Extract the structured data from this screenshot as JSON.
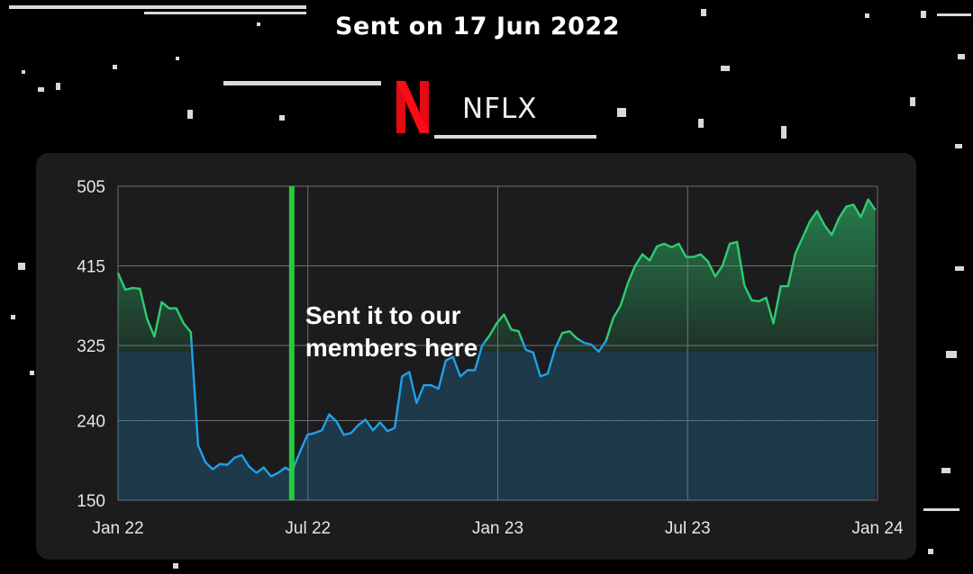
{
  "header": {
    "title": "Sent on 17 Jun 2022",
    "ticker": "NFLX",
    "logo_icon": "netflix-n-icon",
    "logo_color": "#e50914"
  },
  "chart_data": {
    "type": "area",
    "title": "",
    "xlabel": "",
    "ylabel": "",
    "x_ticks": [
      "Jan 22",
      "Jul 22",
      "Jan 23",
      "Jul 23",
      "Jan 24"
    ],
    "y_ticks": [
      150,
      240,
      325,
      415,
      505
    ],
    "ylim": [
      150,
      505
    ],
    "xlim": [
      "2022-01-01",
      "2024-01-01"
    ],
    "grid": true,
    "annotation": {
      "date": "2022-06-17",
      "text_lines": [
        "Sent it to our",
        "members here"
      ],
      "line_color": "#27c93f"
    },
    "colors": {
      "above_325": "#2ecc71",
      "below_325": "#1fa1e6",
      "background": "#1c1c1e"
    },
    "series": [
      {
        "x": [
          "2022-01-01",
          "2022-01-08",
          "2022-01-15",
          "2022-01-22",
          "2022-01-29",
          "2022-02-05",
          "2022-02-12",
          "2022-02-19",
          "2022-02-26",
          "2022-03-05",
          "2022-03-12",
          "2022-03-19",
          "2022-03-26",
          "2022-04-02",
          "2022-04-09",
          "2022-04-16",
          "2022-04-23",
          "2022-04-30",
          "2022-05-07",
          "2022-05-14",
          "2022-05-21",
          "2022-05-28",
          "2022-06-04",
          "2022-06-11",
          "2022-06-17",
          "2022-06-25",
          "2022-07-02",
          "2022-07-09",
          "2022-07-16",
          "2022-07-23",
          "2022-07-30",
          "2022-08-06",
          "2022-08-13",
          "2022-08-20",
          "2022-08-27",
          "2022-09-03",
          "2022-09-10",
          "2022-09-17",
          "2022-09-24",
          "2022-10-01",
          "2022-10-08",
          "2022-10-15",
          "2022-10-22",
          "2022-10-29",
          "2022-11-05",
          "2022-11-12",
          "2022-11-19",
          "2022-11-26",
          "2022-12-03",
          "2022-12-10",
          "2022-12-17",
          "2022-12-24",
          "2022-12-31",
          "2023-01-07",
          "2023-01-14",
          "2023-01-21",
          "2023-01-28",
          "2023-02-04",
          "2023-02-11",
          "2023-02-18",
          "2023-02-25",
          "2023-03-04",
          "2023-03-11",
          "2023-03-18",
          "2023-03-25",
          "2023-04-01",
          "2023-04-08",
          "2023-04-15",
          "2023-04-22",
          "2023-04-29",
          "2023-05-06",
          "2023-05-13",
          "2023-05-20",
          "2023-05-27",
          "2023-06-03",
          "2023-06-10",
          "2023-06-17",
          "2023-06-24",
          "2023-07-01",
          "2023-07-08",
          "2023-07-15",
          "2023-07-22",
          "2023-07-29",
          "2023-08-05",
          "2023-08-12",
          "2023-08-19",
          "2023-08-26",
          "2023-09-02",
          "2023-09-09",
          "2023-09-16",
          "2023-09-23",
          "2023-09-30",
          "2023-10-07",
          "2023-10-14",
          "2023-10-21",
          "2023-10-28",
          "2023-11-04",
          "2023-11-11",
          "2023-11-18",
          "2023-11-25",
          "2023-12-02",
          "2023-12-09",
          "2023-12-16",
          "2023-12-23",
          "2023-12-30"
        ],
        "y": [
          407,
          388,
          390,
          389,
          355,
          335,
          374,
          367,
          367,
          350,
          340,
          212,
          193,
          185,
          191,
          190,
          198,
          201,
          188,
          181,
          187,
          177,
          181,
          187,
          182,
          205,
          224,
          226,
          229,
          247,
          239,
          224,
          226,
          235,
          241,
          229,
          238,
          228,
          232,
          290,
          295,
          260,
          280,
          280,
          276,
          308,
          312,
          290,
          297,
          297,
          325,
          336,
          350,
          360,
          343,
          341,
          320,
          317,
          290,
          293,
          321,
          339,
          341,
          333,
          328,
          326,
          318,
          330,
          356,
          370,
          395,
          415,
          428,
          421,
          437,
          440,
          436,
          440,
          425,
          425,
          428,
          420,
          403,
          415,
          440,
          442,
          393,
          376,
          375,
          379,
          350,
          392,
          392,
          429,
          447,
          465,
          477,
          461,
          450,
          469,
          482,
          484,
          470,
          490,
          478
        ]
      }
    ]
  }
}
